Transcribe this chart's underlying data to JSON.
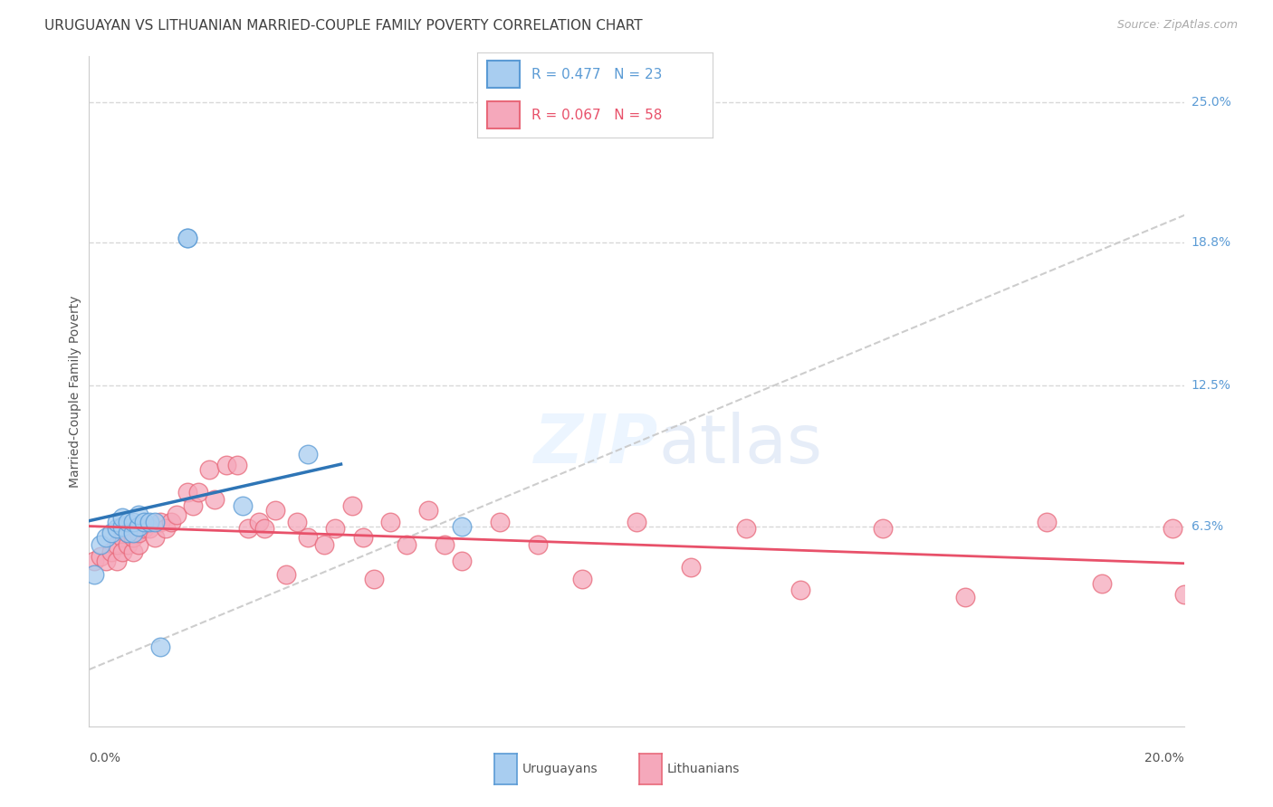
{
  "title": "URUGUAYAN VS LITHUANIAN MARRIED-COUPLE FAMILY POVERTY CORRELATION CHART",
  "source": "Source: ZipAtlas.com",
  "ylabel": "Married-Couple Family Poverty",
  "ytick_labels": [
    "25.0%",
    "18.8%",
    "12.5%",
    "6.3%"
  ],
  "ytick_values": [
    0.25,
    0.188,
    0.125,
    0.063
  ],
  "xtick_label_left": "0.0%",
  "xtick_label_right": "20.0%",
  "xlim": [
    0.0,
    0.2
  ],
  "ylim": [
    -0.025,
    0.27
  ],
  "uruguayan_R": 0.477,
  "uruguayan_N": 23,
  "lithuanian_R": 0.067,
  "lithuanian_N": 58,
  "uruguayan_color": "#a8cdf0",
  "lithuanian_color": "#f5a8bb",
  "uruguayan_edge_color": "#5b9bd5",
  "lithuanian_edge_color": "#e8697a",
  "uruguayan_line_color": "#2e75b6",
  "lithuanian_line_color": "#e8516a",
  "diagonal_color": "#c8c8c8",
  "background_color": "#ffffff",
  "grid_color": "#d8d8d8",
  "title_color": "#404040",
  "source_color": "#aaaaaa",
  "right_tick_color": "#5b9bd5",
  "uruguayan_x": [
    0.001,
    0.002,
    0.003,
    0.004,
    0.005,
    0.005,
    0.006,
    0.006,
    0.007,
    0.007,
    0.008,
    0.008,
    0.009,
    0.009,
    0.01,
    0.011,
    0.012,
    0.013,
    0.018,
    0.018,
    0.028,
    0.04,
    0.068
  ],
  "uruguayan_y": [
    0.042,
    0.055,
    0.058,
    0.06,
    0.062,
    0.065,
    0.063,
    0.067,
    0.06,
    0.065,
    0.06,
    0.065,
    0.063,
    0.068,
    0.065,
    0.065,
    0.065,
    0.01,
    0.19,
    0.19,
    0.072,
    0.095,
    0.063
  ],
  "lithuanian_x": [
    0.001,
    0.002,
    0.003,
    0.004,
    0.005,
    0.005,
    0.006,
    0.006,
    0.007,
    0.007,
    0.008,
    0.008,
    0.009,
    0.009,
    0.01,
    0.011,
    0.012,
    0.013,
    0.014,
    0.015,
    0.016,
    0.018,
    0.019,
    0.02,
    0.022,
    0.023,
    0.025,
    0.027,
    0.029,
    0.031,
    0.032,
    0.034,
    0.036,
    0.038,
    0.04,
    0.043,
    0.045,
    0.048,
    0.05,
    0.052,
    0.055,
    0.058,
    0.062,
    0.065,
    0.068,
    0.075,
    0.082,
    0.09,
    0.1,
    0.11,
    0.12,
    0.13,
    0.145,
    0.16,
    0.175,
    0.185,
    0.198,
    0.2
  ],
  "lithuanian_y": [
    0.048,
    0.05,
    0.048,
    0.052,
    0.048,
    0.055,
    0.058,
    0.052,
    0.055,
    0.06,
    0.052,
    0.058,
    0.055,
    0.06,
    0.062,
    0.062,
    0.058,
    0.065,
    0.062,
    0.065,
    0.068,
    0.078,
    0.072,
    0.078,
    0.088,
    0.075,
    0.09,
    0.09,
    0.062,
    0.065,
    0.062,
    0.07,
    0.042,
    0.065,
    0.058,
    0.055,
    0.062,
    0.072,
    0.058,
    0.04,
    0.065,
    0.055,
    0.07,
    0.055,
    0.048,
    0.065,
    0.055,
    0.04,
    0.065,
    0.045,
    0.062,
    0.035,
    0.062,
    0.032,
    0.065,
    0.038,
    0.062,
    0.033
  ],
  "marker_size": 220,
  "uruguayan_line_x": [
    0.0,
    0.046
  ],
  "lithuanian_line_x": [
    0.0,
    0.2
  ]
}
